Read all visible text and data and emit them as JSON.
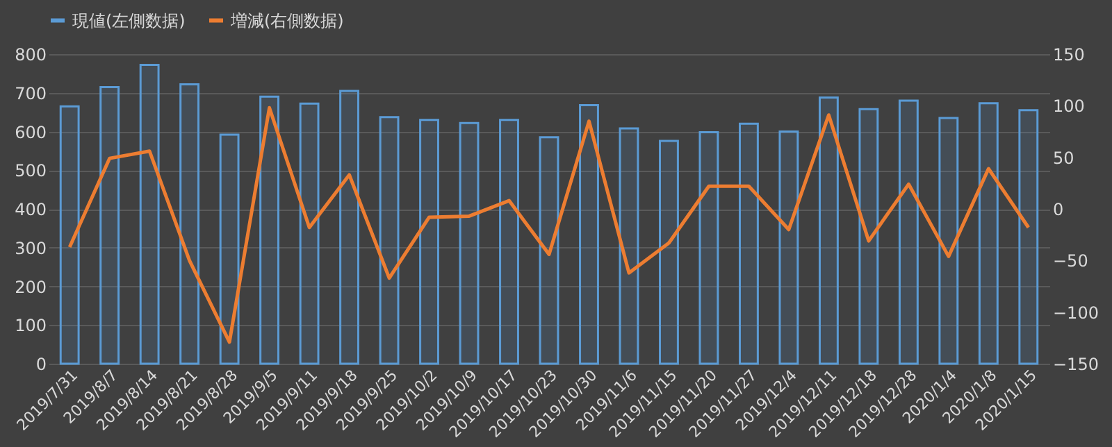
{
  "chart_data": {
    "type": "bar",
    "categories": [
      "2019/7/31",
      "2019/8/7",
      "2019/8/14",
      "2019/8/21",
      "2019/8/28",
      "2019/9/5",
      "2019/9/11",
      "2019/9/18",
      "2019/9/25",
      "2019/10/2",
      "2019/10/9",
      "2019/10/17",
      "2019/10/23",
      "2019/10/30",
      "2019/11/6",
      "2019/11/15",
      "2019/11/20",
      "2019/11/27",
      "2019/12/4",
      "2019/12/11",
      "2019/12/18",
      "2019/12/28",
      "2020/1/4",
      "2020/1/8",
      "2020/1/15"
    ],
    "series": [
      {
        "name": "現値(左側数据)",
        "color": "#5b9bd5",
        "values": [
          665,
          715,
          772,
          722,
          592,
          690,
          672,
          705,
          637,
          630,
          622,
          630,
          585,
          668,
          608,
          576,
          598,
          620,
          600,
          688,
          658,
          680,
          635,
          673,
          655
        ]
      },
      {
        "name": "増減(右側数据)",
        "color": "#ed7d31",
        "type": "line",
        "axis": "y2",
        "values": [
          -37,
          49,
          56,
          -50,
          -129,
          98,
          -18,
          33,
          -67,
          -8,
          -7,
          8,
          -44,
          85,
          -62,
          -33,
          22,
          22,
          -20,
          91,
          -31,
          24,
          -46,
          39,
          -18
        ]
      }
    ],
    "ylim": [
      0,
      800
    ],
    "yticks": [
      0,
      100,
      200,
      300,
      400,
      500,
      600,
      700,
      800
    ],
    "y2lim": [
      -150,
      150
    ],
    "y2ticks": [
      -150,
      -100,
      -50,
      0,
      50,
      100,
      150
    ],
    "grid": "y",
    "legend": "top",
    "line_style": "solid",
    "marker": "none"
  }
}
